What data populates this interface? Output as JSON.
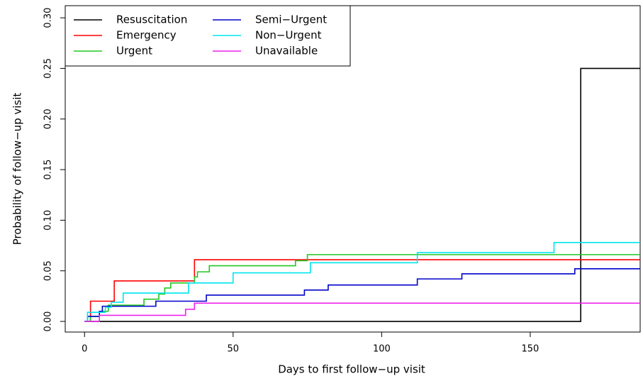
{
  "chart_data": {
    "type": "step",
    "xlabel": "Days to first follow−up visit",
    "ylabel": "Probability of follow−up visit",
    "xlim": [
      -6.5,
      187
    ],
    "ylim": [
      -0.0105,
      0.312
    ],
    "xticks": [
      0,
      50,
      100,
      150
    ],
    "yticks": [
      {
        "value": 0,
        "label": "0.00"
      },
      {
        "value": 0.05,
        "label": "0.05"
      },
      {
        "value": 0.1,
        "label": "0.10"
      },
      {
        "value": 0.15,
        "label": "0.15"
      },
      {
        "value": 0.2,
        "label": "0.20"
      },
      {
        "value": 0.25,
        "label": "0.25"
      },
      {
        "value": 0.3,
        "label": "0.30"
      }
    ],
    "legend": "top-left",
    "series": [
      {
        "name": "Resuscitation",
        "color": "#000000",
        "x": [
          0,
          167,
          187
        ],
        "values": [
          0,
          0.25,
          0.25
        ]
      },
      {
        "name": "Emergency",
        "color": "#ff0000",
        "x": [
          0,
          2,
          10,
          37,
          187
        ],
        "values": [
          0,
          0.02,
          0.04,
          0.061,
          0.061
        ]
      },
      {
        "name": "Urgent",
        "color": "#22c722",
        "x": [
          0,
          2,
          5,
          8,
          20,
          25,
          27,
          29,
          37,
          38,
          42,
          71,
          75,
          187
        ],
        "values": [
          0,
          0.005,
          0.01,
          0.016,
          0.022,
          0.027,
          0.033,
          0.038,
          0.044,
          0.049,
          0.055,
          0.06,
          0.066,
          0.066
        ]
      },
      {
        "name": "Semi−Urgent",
        "color": "#0000cc",
        "x": [
          0,
          1,
          5,
          6,
          24,
          41,
          74,
          82,
          112,
          127,
          165,
          187
        ],
        "values": [
          0,
          0.005,
          0.01,
          0.015,
          0.02,
          0.026,
          0.031,
          0.036,
          0.042,
          0.047,
          0.052,
          0.052
        ]
      },
      {
        "name": "Non−Urgent",
        "color": "#00e5ee",
        "x": [
          0,
          1,
          7,
          9,
          13,
          35,
          50,
          76,
          112,
          158,
          187
        ],
        "values": [
          0,
          0.009,
          0.014,
          0.019,
          0.028,
          0.038,
          0.048,
          0.058,
          0.068,
          0.078,
          0.078
        ]
      },
      {
        "name": "Unavailable",
        "color": "#ee22ee",
        "x": [
          0,
          5,
          34,
          37,
          187
        ],
        "values": [
          0,
          0.006,
          0.012,
          0.018,
          0.018
        ]
      }
    ]
  }
}
